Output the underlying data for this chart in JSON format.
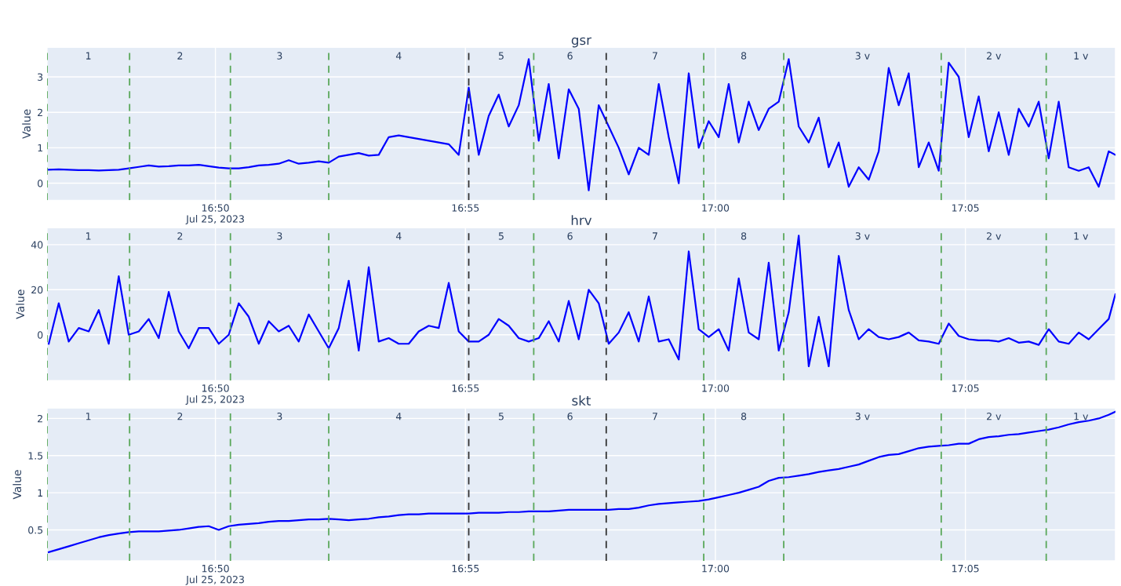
{
  "chart_data": [
    {
      "type": "line",
      "title": "gsr",
      "ylabel": "Value",
      "x": [
        "2023-07-25T16:46:40",
        "2023-07-25T16:46:52",
        "2023-07-25T16:47:04",
        "2023-07-25T16:47:16",
        "2023-07-25T16:47:28",
        "2023-07-25T16:47:40",
        "2023-07-25T16:47:52",
        "2023-07-25T16:48:04",
        "2023-07-25T16:48:16",
        "2023-07-25T16:48:28",
        "2023-07-25T16:48:40",
        "2023-07-25T16:48:52",
        "2023-07-25T16:49:04",
        "2023-07-25T16:49:16",
        "2023-07-25T16:49:28",
        "2023-07-25T16:49:40",
        "2023-07-25T16:49:52",
        "2023-07-25T16:50:04",
        "2023-07-25T16:50:16",
        "2023-07-25T16:50:28",
        "2023-07-25T16:50:40",
        "2023-07-25T16:50:52",
        "2023-07-25T16:51:04",
        "2023-07-25T16:51:16",
        "2023-07-25T16:51:28",
        "2023-07-25T16:51:40",
        "2023-07-25T16:51:52",
        "2023-07-25T16:52:04",
        "2023-07-25T16:52:16",
        "2023-07-25T16:52:28",
        "2023-07-25T16:52:40",
        "2023-07-25T16:52:52",
        "2023-07-25T16:53:04",
        "2023-07-25T16:53:16",
        "2023-07-25T16:53:28",
        "2023-07-25T16:53:40",
        "2023-07-25T16:53:52",
        "2023-07-25T16:54:04",
        "2023-07-25T16:54:16",
        "2023-07-25T16:54:28",
        "2023-07-25T16:54:40",
        "2023-07-25T16:54:52",
        "2023-07-25T16:55:04",
        "2023-07-25T16:55:16",
        "2023-07-25T16:55:28",
        "2023-07-25T16:55:40",
        "2023-07-25T16:55:52",
        "2023-07-25T16:56:04",
        "2023-07-25T16:56:16",
        "2023-07-25T16:56:28",
        "2023-07-25T16:56:40",
        "2023-07-25T16:56:52",
        "2023-07-25T16:57:04",
        "2023-07-25T16:57:16",
        "2023-07-25T16:57:28",
        "2023-07-25T16:57:40",
        "2023-07-25T16:57:52",
        "2023-07-25T16:58:04",
        "2023-07-25T16:58:16",
        "2023-07-25T16:58:28",
        "2023-07-25T16:58:40",
        "2023-07-25T16:58:52",
        "2023-07-25T16:59:04",
        "2023-07-25T16:59:16",
        "2023-07-25T16:59:28",
        "2023-07-25T16:59:40",
        "2023-07-25T16:59:52",
        "2023-07-25T17:00:04",
        "2023-07-25T17:00:16",
        "2023-07-25T17:00:28",
        "2023-07-25T17:00:40",
        "2023-07-25T17:00:52",
        "2023-07-25T17:01:04",
        "2023-07-25T17:01:16",
        "2023-07-25T17:01:28",
        "2023-07-25T17:01:40",
        "2023-07-25T17:01:52",
        "2023-07-25T17:02:04",
        "2023-07-25T17:02:16",
        "2023-07-25T17:02:28",
        "2023-07-25T17:02:40",
        "2023-07-25T17:02:52",
        "2023-07-25T17:03:04",
        "2023-07-25T17:03:16",
        "2023-07-25T17:03:28",
        "2023-07-25T17:03:40",
        "2023-07-25T17:03:52",
        "2023-07-25T17:04:04",
        "2023-07-25T17:04:16",
        "2023-07-25T17:04:28",
        "2023-07-25T17:04:40",
        "2023-07-25T17:04:52",
        "2023-07-25T17:05:04",
        "2023-07-25T17:05:16",
        "2023-07-25T17:05:28",
        "2023-07-25T17:05:40",
        "2023-07-25T17:05:52",
        "2023-07-25T17:06:04",
        "2023-07-25T17:06:16",
        "2023-07-25T17:06:28",
        "2023-07-25T17:06:40",
        "2023-07-25T17:06:52",
        "2023-07-25T17:07:04",
        "2023-07-25T17:07:16",
        "2023-07-25T17:07:28",
        "2023-07-25T17:07:40",
        "2023-07-25T17:07:52",
        "2023-07-25T17:08:00"
      ],
      "series": [
        {
          "color": "#0000ff",
          "values": [
            0.38,
            0.39,
            0.38,
            0.37,
            0.37,
            0.36,
            0.37,
            0.38,
            0.42,
            0.46,
            0.5,
            0.47,
            0.48,
            0.5,
            0.5,
            0.52,
            0.48,
            0.44,
            0.42,
            0.42,
            0.45,
            0.5,
            0.52,
            0.55,
            0.65,
            0.55,
            0.58,
            0.62,
            0.58,
            0.75,
            0.8,
            0.85,
            0.78,
            0.8,
            1.3,
            1.35,
            1.3,
            1.25,
            1.2,
            1.15,
            1.1,
            0.8,
            2.7,
            0.8,
            1.9,
            2.5,
            1.6,
            2.2,
            3.5,
            1.2,
            2.8,
            0.7,
            2.65,
            2.1,
            -0.2,
            2.2,
            1.6,
            1.0,
            0.25,
            1.0,
            0.8,
            2.8,
            1.3,
            0,
            3.1,
            1.0,
            1.75,
            1.3,
            2.8,
            1.15,
            2.3,
            1.5,
            2.1,
            2.3,
            3.5,
            1.6,
            1.15,
            1.85,
            0.45,
            1.15,
            -0.1,
            0.45,
            0.1,
            0.9,
            3.25,
            2.2,
            3.1,
            0.45,
            1.15,
            0.35,
            3.4,
            3.0,
            1.3,
            2.45,
            0.9,
            2.0,
            0.8,
            2.1,
            1.6,
            2.3,
            0.7,
            2.3,
            0.45,
            0.35,
            0.45,
            -0.1,
            0.9,
            0.8
          ]
        }
      ],
      "xlim": [
        "2023-07-25T16:46:38",
        "2023-07-25T17:08:00"
      ],
      "xticks": [
        {
          "value": "2023-07-25T16:50",
          "label": "16:50\nJul 25, 2023"
        },
        {
          "value": "2023-07-25T16:55",
          "label": "16:55"
        },
        {
          "value": "2023-07-25T17:00",
          "label": "17:00"
        },
        {
          "value": "2023-07-25T17:05",
          "label": "17:05"
        }
      ],
      "ylim": [
        -0.48,
        3.83
      ],
      "yticks": [
        0,
        1,
        2,
        3
      ],
      "grid": true,
      "ref_lines": [
        {
          "axis": "x",
          "value": "2023-07-25T16:46:38",
          "color": "#5aa85a",
          "line_style": "dashed"
        },
        {
          "axis": "x",
          "value": "2023-07-25T16:48:17",
          "color": "#5aa85a",
          "line_style": "dashed"
        },
        {
          "axis": "x",
          "value": "2023-07-25T16:50:18",
          "color": "#5aa85a",
          "line_style": "dashed"
        },
        {
          "axis": "x",
          "value": "2023-07-25T16:52:16",
          "color": "#5aa85a",
          "line_style": "dashed"
        },
        {
          "axis": "x",
          "value": "2023-07-25T16:55:04",
          "color": "#333333",
          "line_style": "dashed"
        },
        {
          "axis": "x",
          "value": "2023-07-25T16:56:22",
          "color": "#5aa85a",
          "line_style": "dashed"
        },
        {
          "axis": "x",
          "value": "2023-07-25T16:57:49",
          "color": "#333333",
          "line_style": "dashed"
        },
        {
          "axis": "x",
          "value": "2023-07-25T16:59:46",
          "color": "#5aa85a",
          "line_style": "dashed"
        },
        {
          "axis": "x",
          "value": "2023-07-25T17:01:22",
          "color": "#5aa85a",
          "line_style": "dashed"
        },
        {
          "axis": "x",
          "value": "2023-07-25T17:04:31",
          "color": "#5aa85a",
          "line_style": "dashed"
        },
        {
          "axis": "x",
          "value": "2023-07-25T17:06:37",
          "color": "#5aa85a",
          "line_style": "dashed"
        }
      ],
      "annotations": [
        "1",
        "2",
        "3",
        "4",
        "5",
        "6",
        "7",
        "8",
        "3 v",
        "2 v",
        "1 v"
      ]
    },
    {
      "type": "line",
      "title": "hrv",
      "ylabel": "Value",
      "x": [
        "2023-07-25T16:46:40",
        "2023-07-25T16:46:52",
        "2023-07-25T16:47:04",
        "2023-07-25T16:47:16",
        "2023-07-25T16:47:28",
        "2023-07-25T16:47:40",
        "2023-07-25T16:47:52",
        "2023-07-25T16:48:04",
        "2023-07-25T16:48:16",
        "2023-07-25T16:48:28",
        "2023-07-25T16:48:40",
        "2023-07-25T16:48:52",
        "2023-07-25T16:49:04",
        "2023-07-25T16:49:16",
        "2023-07-25T16:49:28",
        "2023-07-25T16:49:40",
        "2023-07-25T16:49:52",
        "2023-07-25T16:50:04",
        "2023-07-25T16:50:16",
        "2023-07-25T16:50:28",
        "2023-07-25T16:50:40",
        "2023-07-25T16:50:52",
        "2023-07-25T16:51:04",
        "2023-07-25T16:51:16",
        "2023-07-25T16:51:28",
        "2023-07-25T16:51:40",
        "2023-07-25T16:51:52",
        "2023-07-25T16:52:04",
        "2023-07-25T16:52:16",
        "2023-07-25T16:52:28",
        "2023-07-25T16:52:40",
        "2023-07-25T16:52:52",
        "2023-07-25T16:53:04",
        "2023-07-25T16:53:16",
        "2023-07-25T16:53:28",
        "2023-07-25T16:53:40",
        "2023-07-25T16:53:52",
        "2023-07-25T16:54:04",
        "2023-07-25T16:54:16",
        "2023-07-25T16:54:28",
        "2023-07-25T16:54:40",
        "2023-07-25T16:54:52",
        "2023-07-25T16:55:04",
        "2023-07-25T16:55:16",
        "2023-07-25T16:55:28",
        "2023-07-25T16:55:40",
        "2023-07-25T16:55:52",
        "2023-07-25T16:56:04",
        "2023-07-25T16:56:16",
        "2023-07-25T16:56:28",
        "2023-07-25T16:56:40",
        "2023-07-25T16:56:52",
        "2023-07-25T16:57:04",
        "2023-07-25T16:57:16",
        "2023-07-25T16:57:28",
        "2023-07-25T16:57:40",
        "2023-07-25T16:57:52",
        "2023-07-25T16:58:04",
        "2023-07-25T16:58:16",
        "2023-07-25T16:58:28",
        "2023-07-25T16:58:40",
        "2023-07-25T16:58:52",
        "2023-07-25T16:59:04",
        "2023-07-25T16:59:16",
        "2023-07-25T16:59:28",
        "2023-07-25T16:59:40",
        "2023-07-25T16:59:52",
        "2023-07-25T17:00:04",
        "2023-07-25T17:00:16",
        "2023-07-25T17:00:28",
        "2023-07-25T17:00:40",
        "2023-07-25T17:00:52",
        "2023-07-25T17:01:04",
        "2023-07-25T17:01:16",
        "2023-07-25T17:01:28",
        "2023-07-25T17:01:40",
        "2023-07-25T17:01:52",
        "2023-07-25T17:02:04",
        "2023-07-25T17:02:16",
        "2023-07-25T17:02:28",
        "2023-07-25T17:02:40",
        "2023-07-25T17:02:52",
        "2023-07-25T17:03:04",
        "2023-07-25T17:03:16",
        "2023-07-25T17:03:28",
        "2023-07-25T17:03:40",
        "2023-07-25T17:03:52",
        "2023-07-25T17:04:04",
        "2023-07-25T17:04:16",
        "2023-07-25T17:04:28",
        "2023-07-25T17:04:40",
        "2023-07-25T17:04:52",
        "2023-07-25T17:05:04",
        "2023-07-25T17:05:16",
        "2023-07-25T17:05:28",
        "2023-07-25T17:05:40",
        "2023-07-25T17:05:52",
        "2023-07-25T17:06:04",
        "2023-07-25T17:06:16",
        "2023-07-25T17:06:28",
        "2023-07-25T17:06:40",
        "2023-07-25T17:06:52",
        "2023-07-25T17:07:04",
        "2023-07-25T17:07:16",
        "2023-07-25T17:07:28",
        "2023-07-25T17:07:40",
        "2023-07-25T17:07:52",
        "2023-07-25T17:08:00"
      ],
      "series": [
        {
          "color": "#0000ff",
          "values": [
            -4,
            14,
            -3,
            3,
            1.5,
            11,
            -4,
            26,
            0,
            1.5,
            7,
            -1.5,
            19,
            1.5,
            -6,
            3,
            3,
            -4,
            0,
            14,
            8,
            -4,
            6,
            1.5,
            4,
            -3,
            9,
            1.5,
            -6,
            3,
            24,
            -7,
            30,
            -3,
            -1.5,
            -4,
            -4,
            1.5,
            4,
            3,
            23,
            1.5,
            -3,
            -3,
            0,
            7,
            4,
            -1.5,
            -3,
            -1.5,
            6,
            -3,
            15,
            -2,
            20,
            14,
            -4,
            1,
            10,
            -3,
            17,
            -3,
            -2,
            -11,
            37,
            2.5,
            -1,
            2.5,
            -7,
            25,
            1,
            -2,
            32,
            -7,
            10,
            44,
            -14,
            8,
            -14,
            35,
            11,
            -2,
            2.5,
            -1,
            -2,
            -1,
            1,
            -2.5,
            -3,
            -4,
            5,
            -0.5,
            -2,
            -2.5,
            -2.5,
            -3,
            -1.5,
            -3.5,
            -3,
            -4.5,
            2.5,
            -3,
            -4,
            1,
            -2,
            2.5,
            7,
            18
          ]
        }
      ],
      "xlim": [
        "2023-07-25T16:46:38",
        "2023-07-25T17:08:00"
      ],
      "xticks": [
        {
          "value": "2023-07-25T16:50",
          "label": "16:50\nJul 25, 2023"
        },
        {
          "value": "2023-07-25T16:55",
          "label": "16:55"
        },
        {
          "value": "2023-07-25T17:00",
          "label": "17:00"
        },
        {
          "value": "2023-07-25T17:05",
          "label": "17:05"
        }
      ],
      "ylim": [
        -20.3,
        47.5
      ],
      "yticks": [
        0,
        20,
        40
      ],
      "grid": true,
      "ref_lines": [
        {
          "axis": "x",
          "value": "2023-07-25T16:46:38",
          "color": "#5aa85a",
          "line_style": "dashed"
        },
        {
          "axis": "x",
          "value": "2023-07-25T16:48:17",
          "color": "#5aa85a",
          "line_style": "dashed"
        },
        {
          "axis": "x",
          "value": "2023-07-25T16:50:18",
          "color": "#5aa85a",
          "line_style": "dashed"
        },
        {
          "axis": "x",
          "value": "2023-07-25T16:52:16",
          "color": "#5aa85a",
          "line_style": "dashed"
        },
        {
          "axis": "x",
          "value": "2023-07-25T16:55:04",
          "color": "#333333",
          "line_style": "dashed"
        },
        {
          "axis": "x",
          "value": "2023-07-25T16:56:22",
          "color": "#5aa85a",
          "line_style": "dashed"
        },
        {
          "axis": "x",
          "value": "2023-07-25T16:57:49",
          "color": "#333333",
          "line_style": "dashed"
        },
        {
          "axis": "x",
          "value": "2023-07-25T16:59:46",
          "color": "#5aa85a",
          "line_style": "dashed"
        },
        {
          "axis": "x",
          "value": "2023-07-25T17:01:22",
          "color": "#5aa85a",
          "line_style": "dashed"
        },
        {
          "axis": "x",
          "value": "2023-07-25T17:04:31",
          "color": "#5aa85a",
          "line_style": "dashed"
        },
        {
          "axis": "x",
          "value": "2023-07-25T17:06:37",
          "color": "#5aa85a",
          "line_style": "dashed"
        }
      ],
      "annotations": [
        "1",
        "2",
        "3",
        "4",
        "5",
        "6",
        "7",
        "8",
        "3 v",
        "2 v",
        "1 v"
      ]
    },
    {
      "type": "line",
      "title": "skt",
      "ylabel": "Value",
      "x": [
        "2023-07-25T16:46:40",
        "2023-07-25T16:46:52",
        "2023-07-25T16:47:04",
        "2023-07-25T16:47:16",
        "2023-07-25T16:47:28",
        "2023-07-25T16:47:40",
        "2023-07-25T16:47:52",
        "2023-07-25T16:48:04",
        "2023-07-25T16:48:16",
        "2023-07-25T16:48:28",
        "2023-07-25T16:48:40",
        "2023-07-25T16:48:52",
        "2023-07-25T16:49:04",
        "2023-07-25T16:49:16",
        "2023-07-25T16:49:28",
        "2023-07-25T16:49:40",
        "2023-07-25T16:49:52",
        "2023-07-25T16:50:04",
        "2023-07-25T16:50:16",
        "2023-07-25T16:50:28",
        "2023-07-25T16:50:40",
        "2023-07-25T16:50:52",
        "2023-07-25T16:51:04",
        "2023-07-25T16:51:16",
        "2023-07-25T16:51:28",
        "2023-07-25T16:51:40",
        "2023-07-25T16:51:52",
        "2023-07-25T16:52:04",
        "2023-07-25T16:52:16",
        "2023-07-25T16:52:28",
        "2023-07-25T16:52:40",
        "2023-07-25T16:52:52",
        "2023-07-25T16:53:04",
        "2023-07-25T16:53:16",
        "2023-07-25T16:53:28",
        "2023-07-25T16:53:40",
        "2023-07-25T16:53:52",
        "2023-07-25T16:54:04",
        "2023-07-25T16:54:16",
        "2023-07-25T16:54:28",
        "2023-07-25T16:54:40",
        "2023-07-25T16:54:52",
        "2023-07-25T16:55:04",
        "2023-07-25T16:55:16",
        "2023-07-25T16:55:28",
        "2023-07-25T16:55:40",
        "2023-07-25T16:55:52",
        "2023-07-25T16:56:04",
        "2023-07-25T16:56:16",
        "2023-07-25T16:56:28",
        "2023-07-25T16:56:40",
        "2023-07-25T16:56:52",
        "2023-07-25T16:57:04",
        "2023-07-25T16:57:16",
        "2023-07-25T16:57:28",
        "2023-07-25T16:57:40",
        "2023-07-25T16:57:52",
        "2023-07-25T16:58:04",
        "2023-07-25T16:58:16",
        "2023-07-25T16:58:28",
        "2023-07-25T16:58:40",
        "2023-07-25T16:58:52",
        "2023-07-25T16:59:04",
        "2023-07-25T16:59:16",
        "2023-07-25T16:59:28",
        "2023-07-25T16:59:40",
        "2023-07-25T16:59:52",
        "2023-07-25T17:00:04",
        "2023-07-25T17:00:16",
        "2023-07-25T17:00:28",
        "2023-07-25T17:00:40",
        "2023-07-25T17:00:52",
        "2023-07-25T17:01:04",
        "2023-07-25T17:01:16",
        "2023-07-25T17:01:28",
        "2023-07-25T17:01:40",
        "2023-07-25T17:01:52",
        "2023-07-25T17:02:04",
        "2023-07-25T17:02:16",
        "2023-07-25T17:02:28",
        "2023-07-25T17:02:40",
        "2023-07-25T17:02:52",
        "2023-07-25T17:03:04",
        "2023-07-25T17:03:16",
        "2023-07-25T17:03:28",
        "2023-07-25T17:03:40",
        "2023-07-25T17:03:52",
        "2023-07-25T17:04:04",
        "2023-07-25T17:04:16",
        "2023-07-25T17:04:28",
        "2023-07-25T17:04:40",
        "2023-07-25T17:04:52",
        "2023-07-25T17:05:04",
        "2023-07-25T17:05:16",
        "2023-07-25T17:05:28",
        "2023-07-25T17:05:40",
        "2023-07-25T17:05:52",
        "2023-07-25T17:06:04",
        "2023-07-25T17:06:16",
        "2023-07-25T17:06:28",
        "2023-07-25T17:06:40",
        "2023-07-25T17:06:52",
        "2023-07-25T17:07:04",
        "2023-07-25T17:07:16",
        "2023-07-25T17:07:28",
        "2023-07-25T17:07:40",
        "2023-07-25T17:07:52",
        "2023-07-25T17:08:00"
      ],
      "series": [
        {
          "color": "#0000ff",
          "values": [
            0.2,
            0.24,
            0.28,
            0.32,
            0.36,
            0.4,
            0.43,
            0.45,
            0.47,
            0.48,
            0.48,
            0.48,
            0.49,
            0.5,
            0.52,
            0.54,
            0.55,
            0.5,
            0.55,
            0.57,
            0.58,
            0.59,
            0.61,
            0.62,
            0.62,
            0.63,
            0.64,
            0.64,
            0.65,
            0.64,
            0.63,
            0.64,
            0.65,
            0.67,
            0.68,
            0.7,
            0.71,
            0.71,
            0.72,
            0.72,
            0.72,
            0.72,
            0.72,
            0.73,
            0.73,
            0.73,
            0.74,
            0.74,
            0.75,
            0.75,
            0.75,
            0.76,
            0.77,
            0.77,
            0.77,
            0.77,
            0.77,
            0.78,
            0.78,
            0.8,
            0.83,
            0.85,
            0.86,
            0.87,
            0.88,
            0.89,
            0.91,
            0.94,
            0.97,
            1.0,
            1.04,
            1.08,
            1.16,
            1.2,
            1.21,
            1.23,
            1.25,
            1.28,
            1.3,
            1.32,
            1.35,
            1.38,
            1.43,
            1.48,
            1.51,
            1.52,
            1.56,
            1.6,
            1.62,
            1.63,
            1.64,
            1.66,
            1.66,
            1.72,
            1.75,
            1.76,
            1.78,
            1.79,
            1.81,
            1.83,
            1.85,
            1.88,
            1.92,
            1.95,
            1.97,
            2.0,
            2.05,
            2.09
          ]
        }
      ],
      "xlim": [
        "2023-07-25T16:46:38",
        "2023-07-25T17:08:00"
      ],
      "xticks": [
        {
          "value": "2023-07-25T16:50",
          "label": "16:50\nJul 25, 2023"
        },
        {
          "value": "2023-07-25T16:55",
          "label": "16:55"
        },
        {
          "value": "2023-07-25T17:00",
          "label": "17:00"
        },
        {
          "value": "2023-07-25T17:05",
          "label": "17:05"
        }
      ],
      "ylim": [
        0.084,
        2.14
      ],
      "yticks": [
        0.5,
        1,
        1.5,
        2
      ],
      "grid": true,
      "ref_lines": [
        {
          "axis": "x",
          "value": "2023-07-25T16:46:38",
          "color": "#5aa85a",
          "line_style": "dashed"
        },
        {
          "axis": "x",
          "value": "2023-07-25T16:48:17",
          "color": "#5aa85a",
          "line_style": "dashed"
        },
        {
          "axis": "x",
          "value": "2023-07-25T16:50:18",
          "color": "#5aa85a",
          "line_style": "dashed"
        },
        {
          "axis": "x",
          "value": "2023-07-25T16:52:16",
          "color": "#5aa85a",
          "line_style": "dashed"
        },
        {
          "axis": "x",
          "value": "2023-07-25T16:55:04",
          "color": "#333333",
          "line_style": "dashed"
        },
        {
          "axis": "x",
          "value": "2023-07-25T16:56:22",
          "color": "#5aa85a",
          "line_style": "dashed"
        },
        {
          "axis": "x",
          "value": "2023-07-25T16:57:49",
          "color": "#333333",
          "line_style": "dashed"
        },
        {
          "axis": "x",
          "value": "2023-07-25T16:59:46",
          "color": "#5aa85a",
          "line_style": "dashed"
        },
        {
          "axis": "x",
          "value": "2023-07-25T17:01:22",
          "color": "#5aa85a",
          "line_style": "dashed"
        },
        {
          "axis": "x",
          "value": "2023-07-25T17:04:31",
          "color": "#5aa85a",
          "line_style": "dashed"
        },
        {
          "axis": "x",
          "value": "2023-07-25T17:06:37",
          "color": "#5aa85a",
          "line_style": "dashed"
        }
      ],
      "annotations": [
        "1",
        "2",
        "3",
        "4",
        "5",
        "6",
        "7",
        "8",
        "3 v",
        "2 v",
        "1 v"
      ]
    }
  ]
}
